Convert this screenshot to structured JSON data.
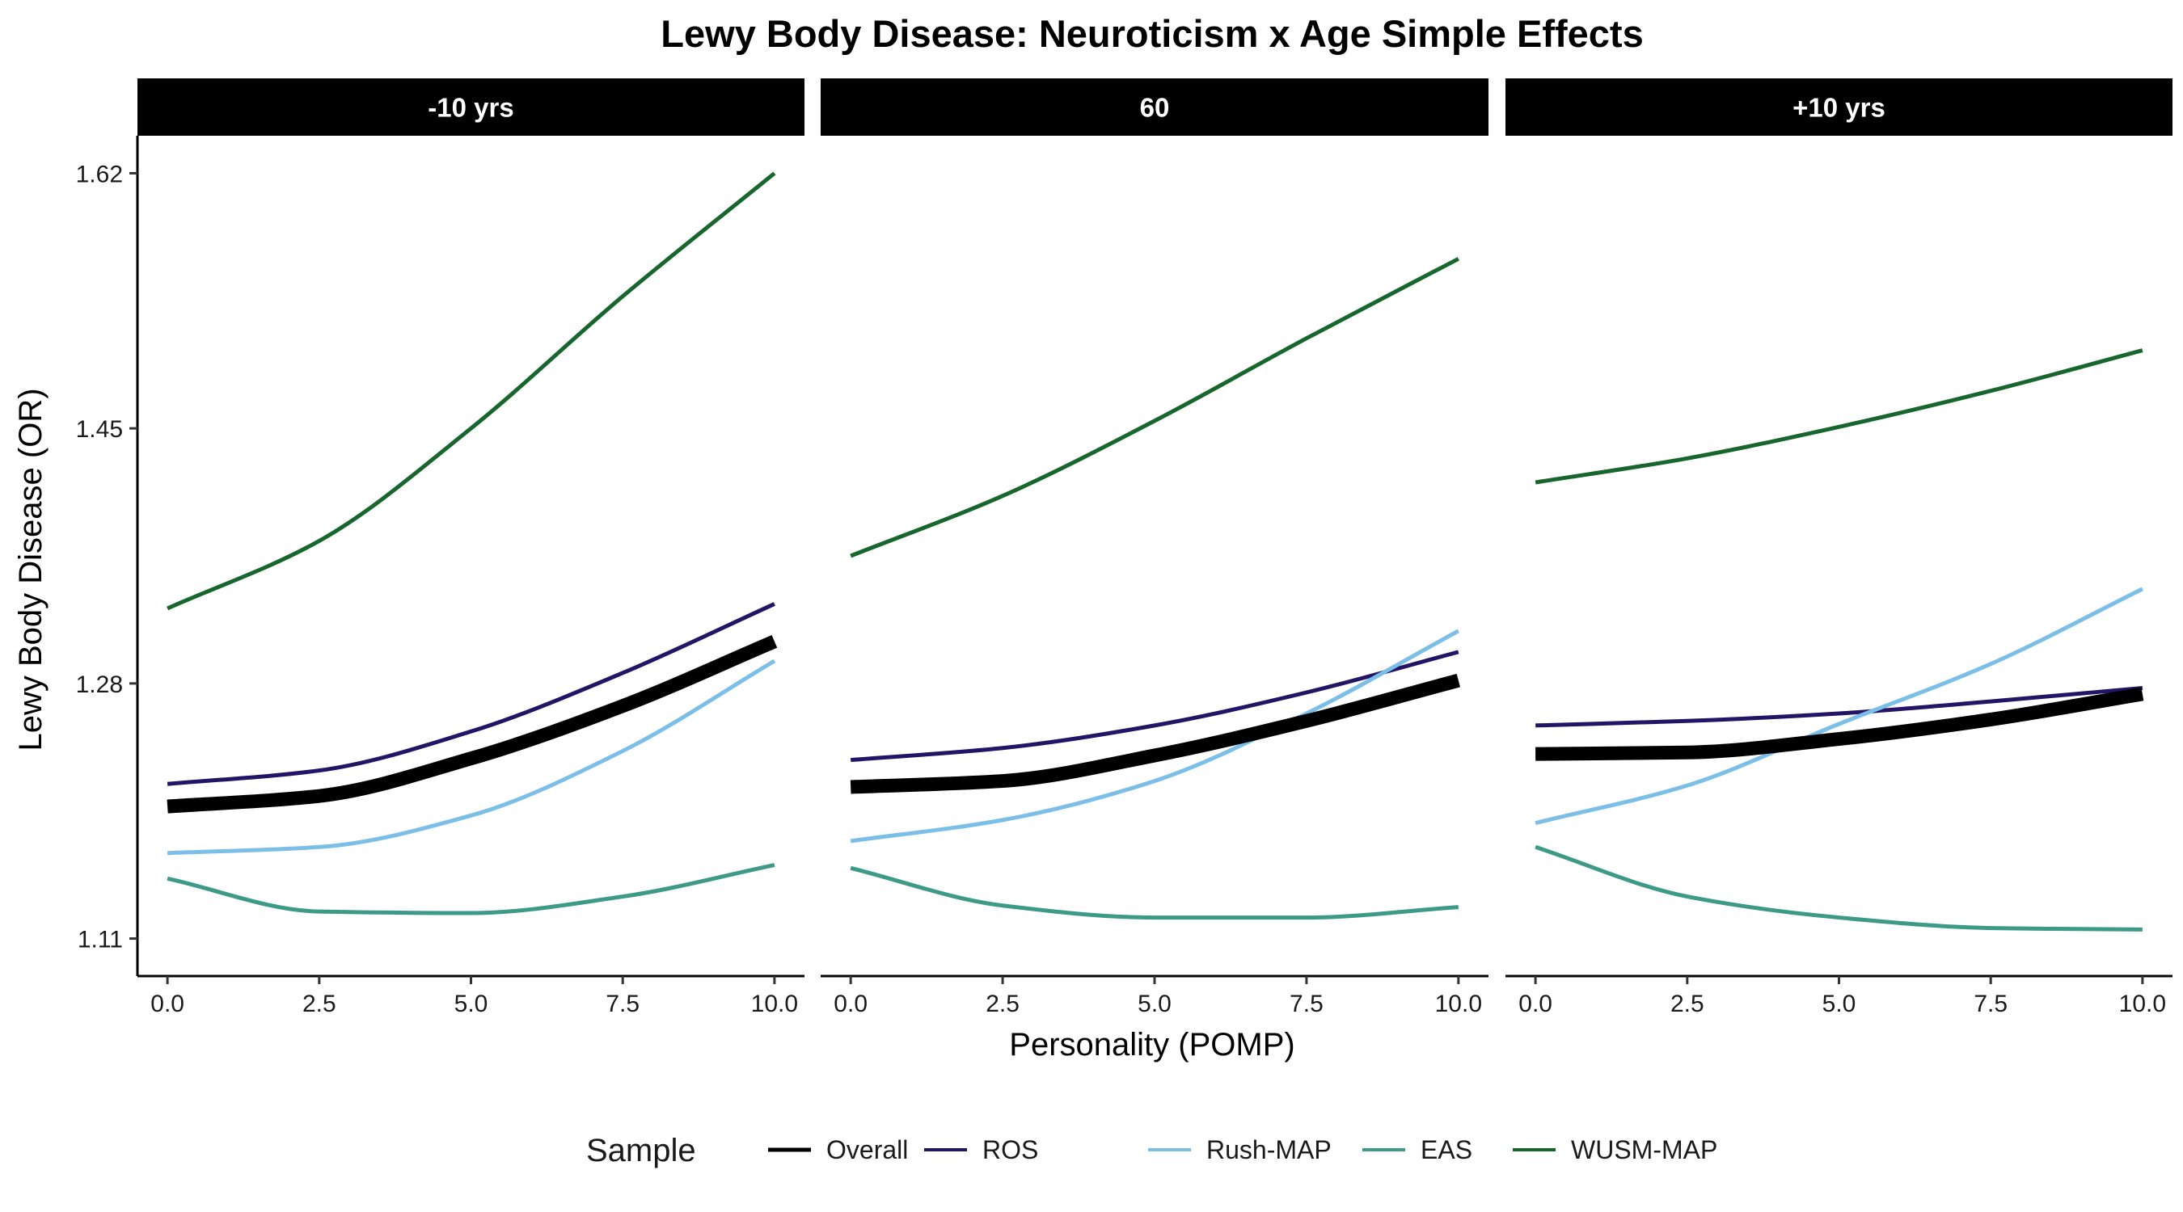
{
  "chart_data": {
    "type": "line",
    "title": "Lewy Body Disease: Neuroticism x Age Simple Effects",
    "xlabel": "Personality (POMP)",
    "ylabel": "Lewy Body Disease (OR)",
    "xlim": [
      0,
      10
    ],
    "ylim": [
      1.085,
      1.645
    ],
    "x_ticks": [
      0.0,
      2.5,
      5.0,
      7.5,
      10.0
    ],
    "x_tick_labels": [
      "0.0",
      "2.5",
      "5.0",
      "7.5",
      "10.0"
    ],
    "y_ticks": [
      1.11,
      1.28,
      1.45,
      1.62
    ],
    "y_tick_labels": [
      "1.11",
      "1.28",
      "1.45",
      "1.62"
    ],
    "grid": false,
    "legend": {
      "title": "Sample",
      "placement": "bottom",
      "entries": [
        "Overall",
        "ROS",
        "Rush-MAP",
        "EAS",
        "WUSM-MAP"
      ]
    },
    "colors": {
      "Overall": "#000000",
      "ROS": "#231466",
      "Rush-MAP": "#7bbfe8",
      "EAS": "#3c9a86",
      "WUSM-MAP": "#17662e"
    },
    "x": [
      0,
      2.5,
      5,
      7.5,
      10
    ],
    "panels": [
      {
        "label": "-10 yrs",
        "series": [
          {
            "name": "Overall",
            "values": [
              1.198,
              1.205,
              1.23,
              1.265,
              1.308
            ]
          },
          {
            "name": "ROS",
            "values": [
              1.213,
              1.222,
              1.248,
              1.287,
              1.333
            ]
          },
          {
            "name": "Rush-MAP",
            "values": [
              1.167,
              1.171,
              1.192,
              1.235,
              1.295
            ]
          },
          {
            "name": "EAS",
            "values": [
              1.15,
              1.128,
              1.127,
              1.138,
              1.159
            ]
          },
          {
            "name": "WUSM-MAP",
            "values": [
              1.33,
              1.375,
              1.45,
              1.538,
              1.62
            ]
          }
        ]
      },
      {
        "label": "60",
        "series": [
          {
            "name": "Overall",
            "values": [
              1.211,
              1.215,
              1.232,
              1.255,
              1.282
            ]
          },
          {
            "name": "ROS",
            "values": [
              1.229,
              1.237,
              1.252,
              1.274,
              1.301
            ]
          },
          {
            "name": "Rush-MAP",
            "values": [
              1.175,
              1.189,
              1.215,
              1.26,
              1.315
            ]
          },
          {
            "name": "EAS",
            "values": [
              1.157,
              1.132,
              1.124,
              1.124,
              1.131
            ]
          },
          {
            "name": "WUSM-MAP",
            "values": [
              1.365,
              1.405,
              1.455,
              1.51,
              1.563
            ]
          }
        ]
      },
      {
        "label": "+10 yrs",
        "series": [
          {
            "name": "Overall",
            "values": [
              1.233,
              1.234,
              1.243,
              1.256,
              1.273
            ]
          },
          {
            "name": "ROS",
            "values": [
              1.252,
              1.255,
              1.26,
              1.268,
              1.277
            ]
          },
          {
            "name": "Rush-MAP",
            "values": [
              1.187,
              1.212,
              1.253,
              1.293,
              1.343
            ]
          },
          {
            "name": "EAS",
            "values": [
              1.171,
              1.138,
              1.124,
              1.117,
              1.116
            ]
          },
          {
            "name": "WUSM-MAP",
            "values": [
              1.414,
              1.43,
              1.451,
              1.475,
              1.502
            ]
          }
        ]
      }
    ]
  }
}
